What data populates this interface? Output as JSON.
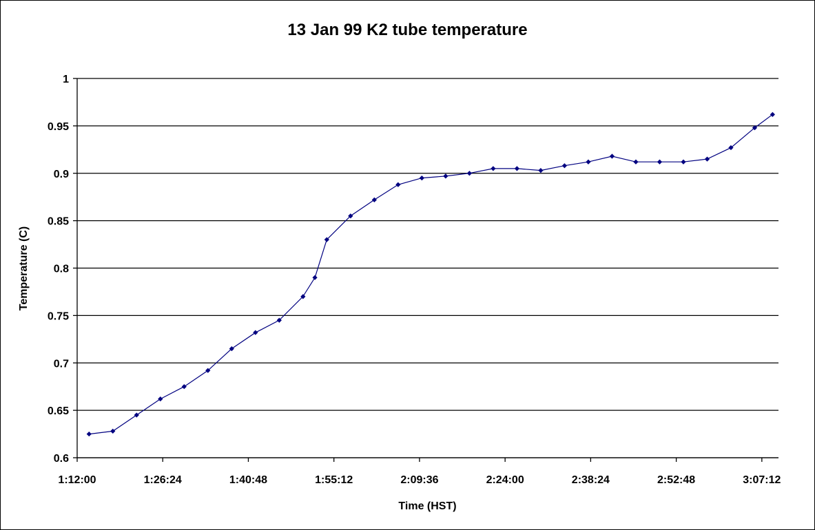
{
  "chart_data": {
    "type": "line",
    "title": "13 Jan 99 K2 tube temperature",
    "xlabel": "Time (HST)",
    "ylabel": "Temperature (C)",
    "x_ticks": [
      "1:12:00",
      "1:26:24",
      "1:40:48",
      "1:55:12",
      "2:09:36",
      "2:24:00",
      "2:38:24",
      "2:52:48",
      "3:07:12"
    ],
    "y_ticks": [
      "0.6",
      "0.65",
      "0.7",
      "0.75",
      "0.8",
      "0.85",
      "0.9",
      "0.95",
      "1"
    ],
    "xlim": [
      "1:12:00",
      "3:10:00"
    ],
    "ylim": [
      0.6,
      1.0
    ],
    "grid": "horizontal",
    "legend": "none",
    "series_color": "#000080",
    "series": [
      {
        "x": [
          "1:14:00",
          "1:18:00",
          "1:22:00",
          "1:26:00",
          "1:30:00",
          "1:34:00",
          "1:38:00",
          "1:42:00",
          "1:46:00",
          "1:50:00",
          "1:52:00",
          "1:54:00",
          "1:58:00",
          "2:02:00",
          "2:06:00",
          "2:10:00",
          "2:14:00",
          "2:18:00",
          "2:22:00",
          "2:26:00",
          "2:30:00",
          "2:34:00",
          "2:38:00",
          "2:42:00",
          "2:46:00",
          "2:50:00",
          "2:54:00",
          "2:58:00",
          "3:02:00",
          "3:06:00",
          "3:09:00"
        ],
        "values": [
          0.625,
          0.628,
          0.645,
          0.662,
          0.675,
          0.692,
          0.715,
          0.732,
          0.745,
          0.77,
          0.79,
          0.83,
          0.855,
          0.872,
          0.888,
          0.895,
          0.897,
          0.9,
          0.905,
          0.905,
          0.903,
          0.908,
          0.912,
          0.918,
          0.912,
          0.912,
          0.912,
          0.915,
          0.927,
          0.948,
          0.962
        ]
      }
    ]
  }
}
